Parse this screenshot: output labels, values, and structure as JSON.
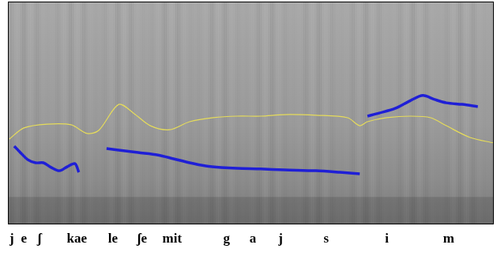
{
  "chart_data": {
    "type": "line",
    "tick_labels": false,
    "grid": false,
    "legend": false,
    "xlim": [
      0,
      100
    ],
    "ylim": [
      0,
      100
    ],
    "series": [
      {
        "color": "#1f1fd6",
        "line_style": "solid",
        "x": [
          1.3,
          2.4,
          4.1,
          5.7,
          7.3,
          8.9,
          10.6,
          12.2,
          13.8,
          14.6,
          17.5,
          20.3,
          22.8,
          26.8,
          30.9,
          34.1,
          37.4,
          40.7,
          43.9,
          47.2,
          52.0,
          56.9,
          63.4,
          68.3,
          72.4,
          73.2,
          74.0,
          76.4,
          79.7,
          82.9,
          85.4,
          87.8,
          90.2,
          93.5,
          96.7
        ],
        "values": [
          34.9,
          32.4,
          28.8,
          27.4,
          27.4,
          25.3,
          23.8,
          25.6,
          27.0,
          23.1,
          null,
          33.8,
          33.1,
          32.0,
          30.9,
          29.2,
          27.4,
          26.0,
          25.3,
          24.9,
          24.6,
          24.2,
          23.8,
          23.1,
          22.4,
          null,
          48.4,
          49.8,
          51.9,
          55.5,
          57.7,
          55.9,
          54.4,
          53.7,
          52.7
        ]
      },
      {
        "color": "#e6dc5a",
        "line_style": "solid",
        "x": [
          0.3,
          3.3,
          8.1,
          13.0,
          16.3,
          18.7,
          22.8,
          26.0,
          29.3,
          33.3,
          37.4,
          42.3,
          47.2,
          52.0,
          56.9,
          63.4,
          69.9,
          72.4,
          74.0,
          78.0,
          82.9,
          87.0,
          90.2,
          95.1,
          100
        ],
        "values": [
          38.1,
          43.1,
          44.8,
          44.5,
          40.6,
          42.0,
          53.7,
          49.5,
          44.1,
          42.3,
          45.9,
          47.7,
          48.4,
          48.4,
          49.1,
          48.8,
          47.7,
          44.1,
          45.9,
          47.7,
          48.4,
          47.7,
          44.1,
          38.8,
          36.3
        ]
      }
    ],
    "annotations": [
      {
        "text": "j",
        "x": 0.8
      },
      {
        "text": "e",
        "x": 3.3
      },
      {
        "text": "ʃ",
        "x": 6.5
      },
      {
        "text": "kae",
        "x": 14.2
      },
      {
        "text": "le",
        "x": 21.6
      },
      {
        "text": "ʃe",
        "x": 27.6
      },
      {
        "text": "mit",
        "x": 33.8
      },
      {
        "text": "g",
        "x": 45.0
      },
      {
        "text": "a",
        "x": 50.4
      },
      {
        "text": "j",
        "x": 56.1
      },
      {
        "text": "s",
        "x": 65.5
      },
      {
        "text": "i",
        "x": 78.0
      },
      {
        "text": "m",
        "x": 90.7
      }
    ]
  }
}
